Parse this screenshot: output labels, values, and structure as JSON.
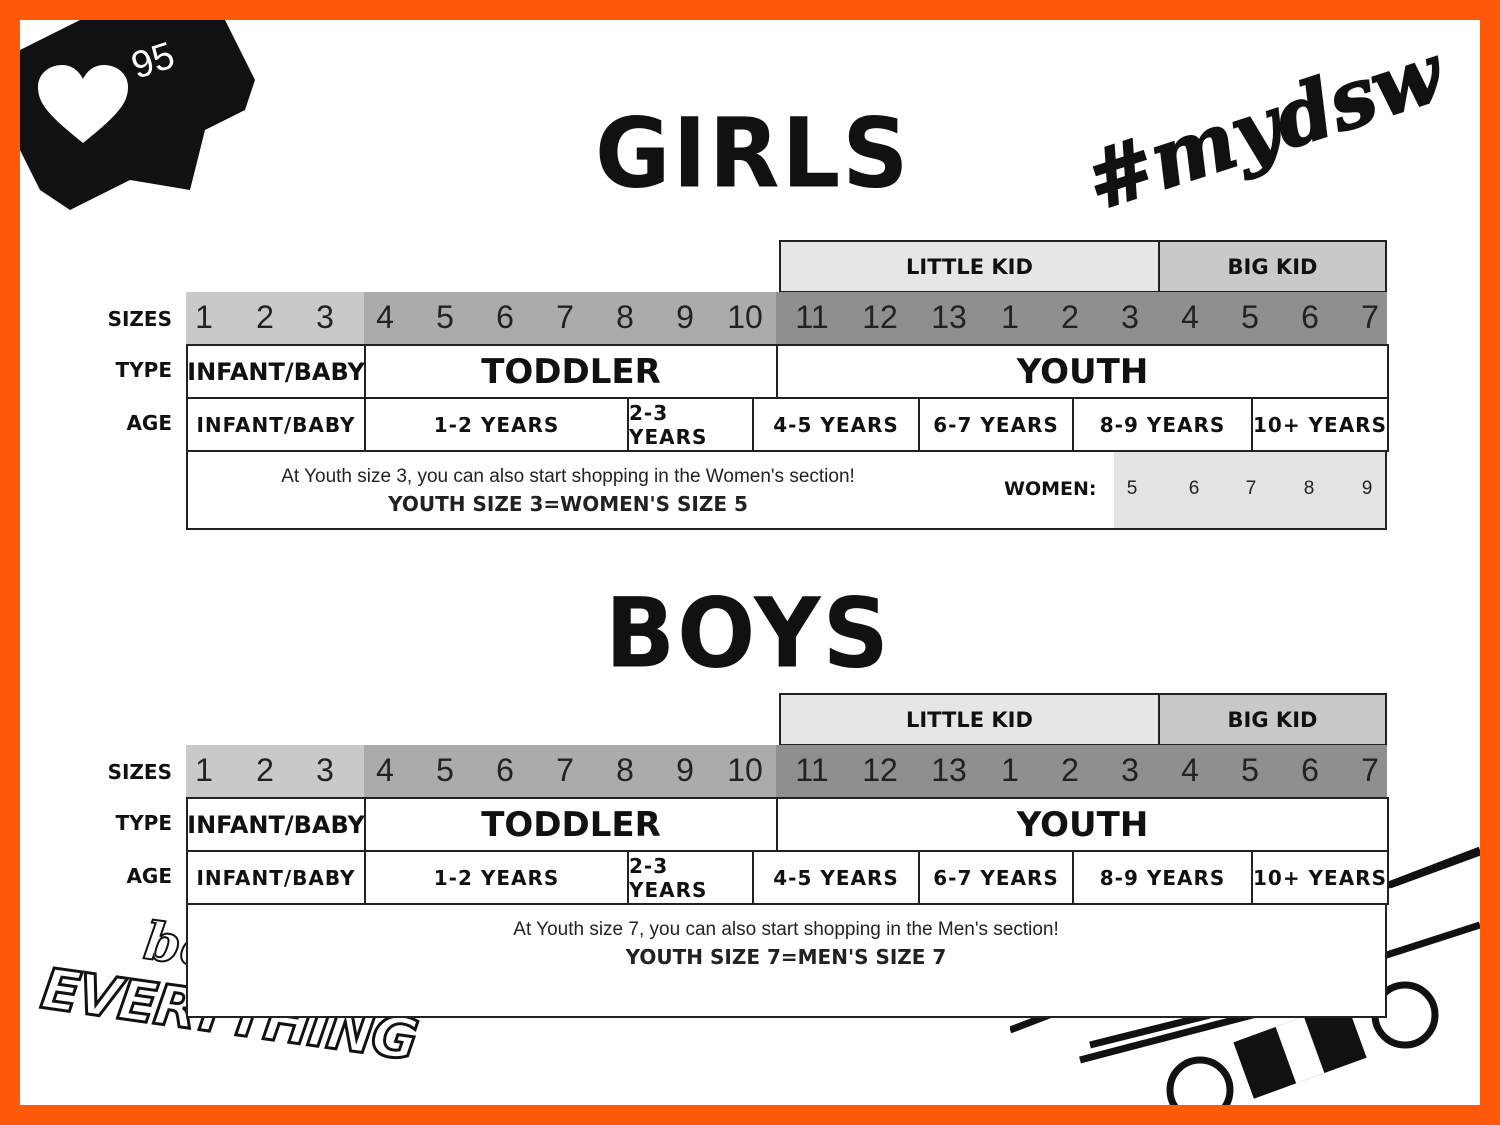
{
  "badge": {
    "likes": "95",
    "icon": "heart-icon"
  },
  "brand_tag": "#mydsw",
  "slogan": {
    "line1": "best of",
    "line2": "EVERYTHING"
  },
  "row_labels": {
    "sizes": "SIZES",
    "type": "TYPE",
    "age": "AGE"
  },
  "girls": {
    "title": "GIRLS",
    "kid_groups": [
      "LITTLE KID",
      "BIG KID"
    ],
    "sizes": [
      "1",
      "2",
      "3",
      "4",
      "5",
      "6",
      "7",
      "8",
      "9",
      "10",
      "11",
      "12",
      "13",
      "1",
      "2",
      "3",
      "4",
      "5",
      "6",
      "7"
    ],
    "types": [
      "INFANT/BABY",
      "TODDLER",
      "YOUTH"
    ],
    "ages": [
      "INFANT/BABY",
      "1-2 YEARS",
      "2-3 YEARS",
      "4-5 YEARS",
      "6-7 YEARS",
      "8-9 YEARS",
      "10+ YEARS"
    ],
    "note_line1": "At Youth size 3, you can also start shopping in the Women's section!",
    "note_line2": "YOUTH SIZE 3=WOMEN'S SIZE 5",
    "women_label": "WOMEN:",
    "women_sizes": [
      "5",
      "6",
      "7",
      "8",
      "9"
    ]
  },
  "boys": {
    "title": "BOYS",
    "kid_groups": [
      "LITTLE KID",
      "BIG KID"
    ],
    "sizes": [
      "1",
      "2",
      "3",
      "4",
      "5",
      "6",
      "7",
      "8",
      "9",
      "10",
      "11",
      "12",
      "13",
      "1",
      "2",
      "3",
      "4",
      "5",
      "6",
      "7"
    ],
    "types": [
      "INFANT/BABY",
      "TODDLER",
      "YOUTH"
    ],
    "ages": [
      "INFANT/BABY",
      "1-2 YEARS",
      "2-3 YEARS",
      "4-5 YEARS",
      "6-7 YEARS",
      "8-9 YEARS",
      "10+ YEARS"
    ],
    "note_line1": "At Youth size 7, you can also start shopping in the Men's section!",
    "note_line2": "YOUTH SIZE 7=MEN'S SIZE 7"
  },
  "colors": {
    "frame": "#ff5a0a",
    "sizes_infant": "#c9c9c9",
    "sizes_toddler": "#ababab",
    "sizes_youth": "#8f8f8f",
    "little_kid": "#e6e6e6",
    "big_kid": "#c9c9c9",
    "women_cells": "#e3e3e3"
  }
}
